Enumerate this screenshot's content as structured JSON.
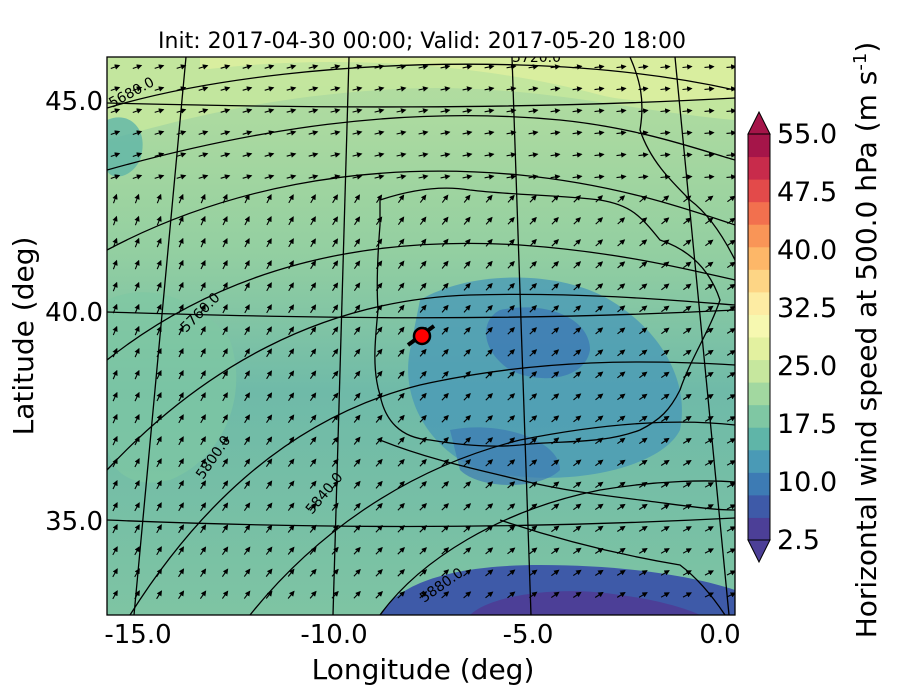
{
  "title": "Init: 2017-04-30 00:00; Valid: 2017-05-20 18:00",
  "xlabel": "Longitude (deg)",
  "ylabel": "Latitude (deg)",
  "x_ticks": [
    "-15.0",
    "-10.0",
    "-5.0",
    "0.0"
  ],
  "y_ticks": [
    "35.0",
    "40.0",
    "45.0"
  ],
  "colorbar": {
    "label": "Horizontal wind speed at 500.0 hPa (m s",
    "label_sup": "-1",
    "label_close": ")",
    "ticks": [
      "2.5",
      "10.0",
      "17.5",
      "25.0",
      "32.5",
      "40.0",
      "47.5",
      "55.0"
    ],
    "colors": [
      "#4c3f97",
      "#3e5aa8",
      "#3d7bb4",
      "#4a9ab6",
      "#5fb5a8",
      "#7fc7a3",
      "#a2d8a0",
      "#c6e79e",
      "#e3f1a0",
      "#f6f8b0",
      "#fdeca3",
      "#fdd585",
      "#fdb768",
      "#f99557",
      "#f2704e",
      "#e34a4a",
      "#c82b4b",
      "#a51549"
    ],
    "min": 2.5,
    "max": 55.0,
    "step": 2.5
  },
  "contour_labels": [
    "5680.0",
    "5720.0",
    "5760.0",
    "5800.0",
    "5840.0",
    "5880.0"
  ],
  "marker": {
    "label": "point-marker",
    "lon": -7.7,
    "lat": 39.3,
    "color": "#ff0000"
  },
  "chart_data": {
    "type": "map",
    "title": "Init: 2017-04-30 00:00; Valid: 2017-05-20 18:00",
    "xlabel": "Longitude (deg)",
    "ylabel": "Latitude (deg)",
    "xlim": [
      -16.0,
      0.3
    ],
    "ylim": [
      32.8,
      46.0
    ],
    "field": "Horizontal wind speed at 500.0 hPa",
    "units": "m s-1",
    "colorbar_range": [
      2.5,
      55.0
    ],
    "contour_levels": [
      5680.0,
      5720.0,
      5760.0,
      5800.0,
      5840.0,
      5880.0
    ],
    "wind_direction": "from south-west"
  }
}
